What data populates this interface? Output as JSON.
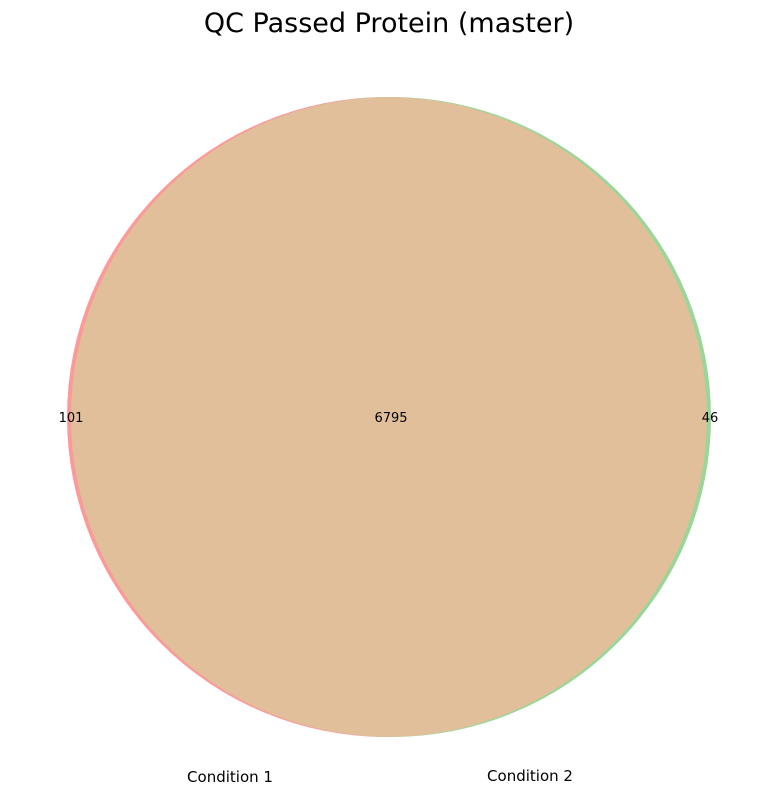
{
  "chart_data": {
    "type": "venn",
    "title": "QC Passed Protein (master)",
    "sets": [
      {
        "label": "Condition 1",
        "only_count": "101",
        "color": "#ff9999"
      },
      {
        "label": "Condition 2",
        "only_count": "46",
        "color": "#99d699"
      }
    ],
    "intersection": {
      "count": "6795",
      "color": "#e0bf9a"
    },
    "grid": false,
    "legend": "none"
  }
}
